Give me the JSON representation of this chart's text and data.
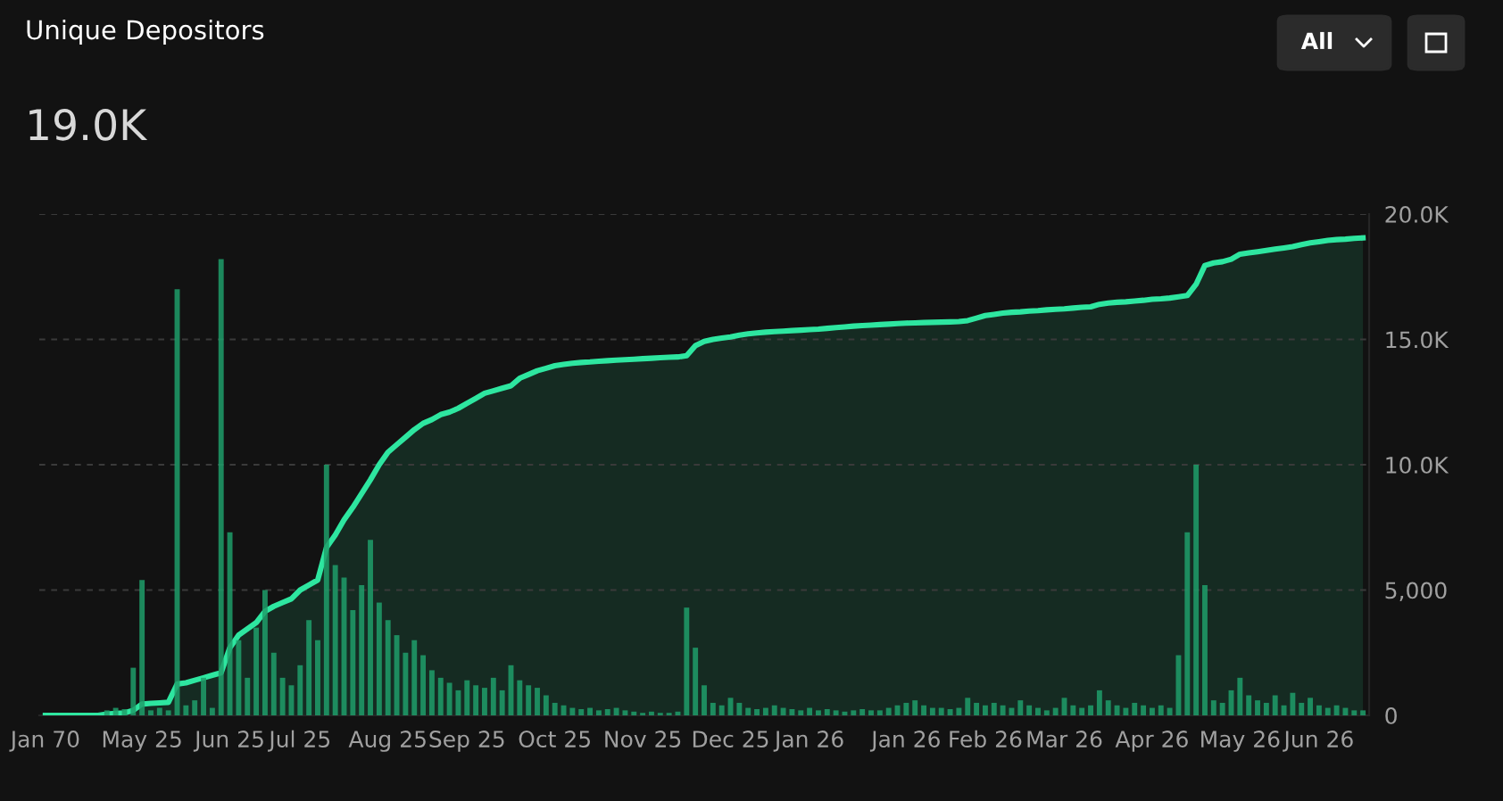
{
  "chart_data": {
    "type": "bar",
    "title": "Unique Depositors",
    "subtitle": "19.0K",
    "annotations": [
      "All"
    ],
    "categories": [
      "Jan 70",
      null,
      null,
      null,
      null,
      null,
      null,
      null,
      null,
      null,
      null,
      "May 25",
      null,
      null,
      null,
      null,
      null,
      null,
      null,
      null,
      null,
      "Jun 25",
      null,
      null,
      null,
      null,
      null,
      null,
      null,
      "Jul 25",
      null,
      null,
      null,
      null,
      null,
      null,
      null,
      null,
      null,
      "Aug 25",
      null,
      null,
      null,
      null,
      null,
      null,
      null,
      null,
      "Sep 25",
      null,
      null,
      null,
      null,
      null,
      null,
      null,
      null,
      null,
      "Oct 25",
      null,
      null,
      null,
      null,
      null,
      null,
      null,
      null,
      null,
      "Nov 25",
      null,
      null,
      null,
      null,
      null,
      null,
      null,
      null,
      null,
      "Dec 25",
      null,
      null,
      null,
      null,
      null,
      null,
      null,
      null,
      "Jan 26",
      null,
      null,
      null,
      null,
      null,
      null,
      null,
      null,
      null,
      null,
      "Jan 26",
      null,
      null,
      null,
      null,
      null,
      null,
      null,
      null,
      "Feb 26",
      null,
      null,
      null,
      null,
      null,
      null,
      null,
      null,
      "Mar 26",
      null,
      null,
      null,
      null,
      null,
      null,
      null,
      null,
      null,
      "Apr 26",
      null,
      null,
      null,
      null,
      null,
      null,
      null,
      null,
      null,
      "May 26",
      null,
      null,
      null,
      null,
      null,
      null,
      null,
      null,
      "Jun 26",
      null,
      null,
      null,
      null,
      null
    ],
    "series": [
      {
        "color": "#1f9e6a",
        "values": [
          0,
          0,
          0,
          0,
          0,
          0,
          0,
          200,
          300,
          250,
          1900,
          5400,
          200,
          300,
          200,
          17000,
          400,
          600,
          1500,
          300,
          18200,
          7300,
          3000,
          1500,
          3500,
          5000,
          2500,
          1500,
          1200,
          2000,
          3800,
          3000,
          10000,
          6000,
          5500,
          4200,
          5200,
          7000,
          4500,
          3800,
          3200,
          2500,
          3000,
          2400,
          1800,
          1500,
          1300,
          1000,
          1400,
          1200,
          1100,
          1500,
          1000,
          2000,
          1400,
          1200,
          1100,
          800,
          500,
          400,
          300,
          250,
          300,
          200,
          250,
          300,
          200,
          150,
          100,
          150,
          100,
          100,
          150,
          4300,
          2700,
          1200,
          500,
          400,
          700,
          500,
          300,
          250,
          300,
          400,
          300,
          250,
          200,
          300,
          200,
          250,
          200,
          150,
          200,
          250,
          200,
          200,
          300,
          400,
          500,
          600,
          400,
          300,
          300,
          250,
          300,
          700,
          500,
          400,
          500,
          400,
          300,
          600,
          400,
          300,
          200,
          300,
          700,
          400,
          300,
          400,
          1000,
          600,
          400,
          300,
          500,
          400,
          300,
          400,
          300,
          2400,
          7300,
          10000,
          5200,
          600,
          500,
          1000,
          1500,
          800,
          600,
          500,
          800,
          400,
          900,
          500,
          700,
          400,
          300,
          400,
          300,
          200,
          200
        ]
      },
      {
        "type": "area",
        "color": "#2ee6a0",
        "values": [
          0,
          0,
          0,
          0,
          0,
          0,
          0,
          50,
          80,
          100,
          200,
          450,
          480,
          500,
          520,
          1250,
          1300,
          1400,
          1500,
          1600,
          1700,
          2700,
          3200,
          3450,
          3700,
          4150,
          4350,
          4500,
          4650,
          5000,
          5200,
          5400,
          6700,
          7200,
          7800,
          8300,
          8850,
          9400,
          10000,
          10500,
          10800,
          11100,
          11400,
          11650,
          11800,
          12000,
          12100,
          12250,
          12450,
          12650,
          12850,
          12950,
          13050,
          13150,
          13450,
          13600,
          13750,
          13850,
          13950,
          14000,
          14050,
          14080,
          14100,
          14130,
          14150,
          14170,
          14190,
          14210,
          14230,
          14250,
          14270,
          14290,
          14300,
          14350,
          14750,
          14920,
          15000,
          15050,
          15100,
          15170,
          15220,
          15260,
          15290,
          15310,
          15330,
          15350,
          15370,
          15390,
          15410,
          15440,
          15470,
          15500,
          15530,
          15550,
          15570,
          15590,
          15610,
          15630,
          15650,
          15660,
          15670,
          15680,
          15690,
          15700,
          15710,
          15750,
          15850,
          15950,
          16000,
          16050,
          16080,
          16100,
          16130,
          16150,
          16180,
          16200,
          16220,
          16250,
          16280,
          16300,
          16400,
          16450,
          16480,
          16500,
          16530,
          16560,
          16600,
          16620,
          16650,
          16700,
          16750,
          17200,
          17950,
          18050,
          18100,
          18200,
          18400,
          18450,
          18500,
          18550,
          18600,
          18650,
          18700,
          18780,
          18850,
          18900,
          18950,
          18980,
          19000,
          19030,
          19050
        ]
      }
    ],
    "ylim": [
      0,
      20000
    ],
    "yticks": [
      0,
      {
        "value": 5000,
        "label": "5,000"
      },
      {
        "value": 10000,
        "label": "10.0K"
      },
      {
        "value": 15000,
        "label": "15.0K"
      },
      {
        "value": 20000,
        "label": "20.0K"
      }
    ],
    "grid": "y",
    "legend": false
  }
}
